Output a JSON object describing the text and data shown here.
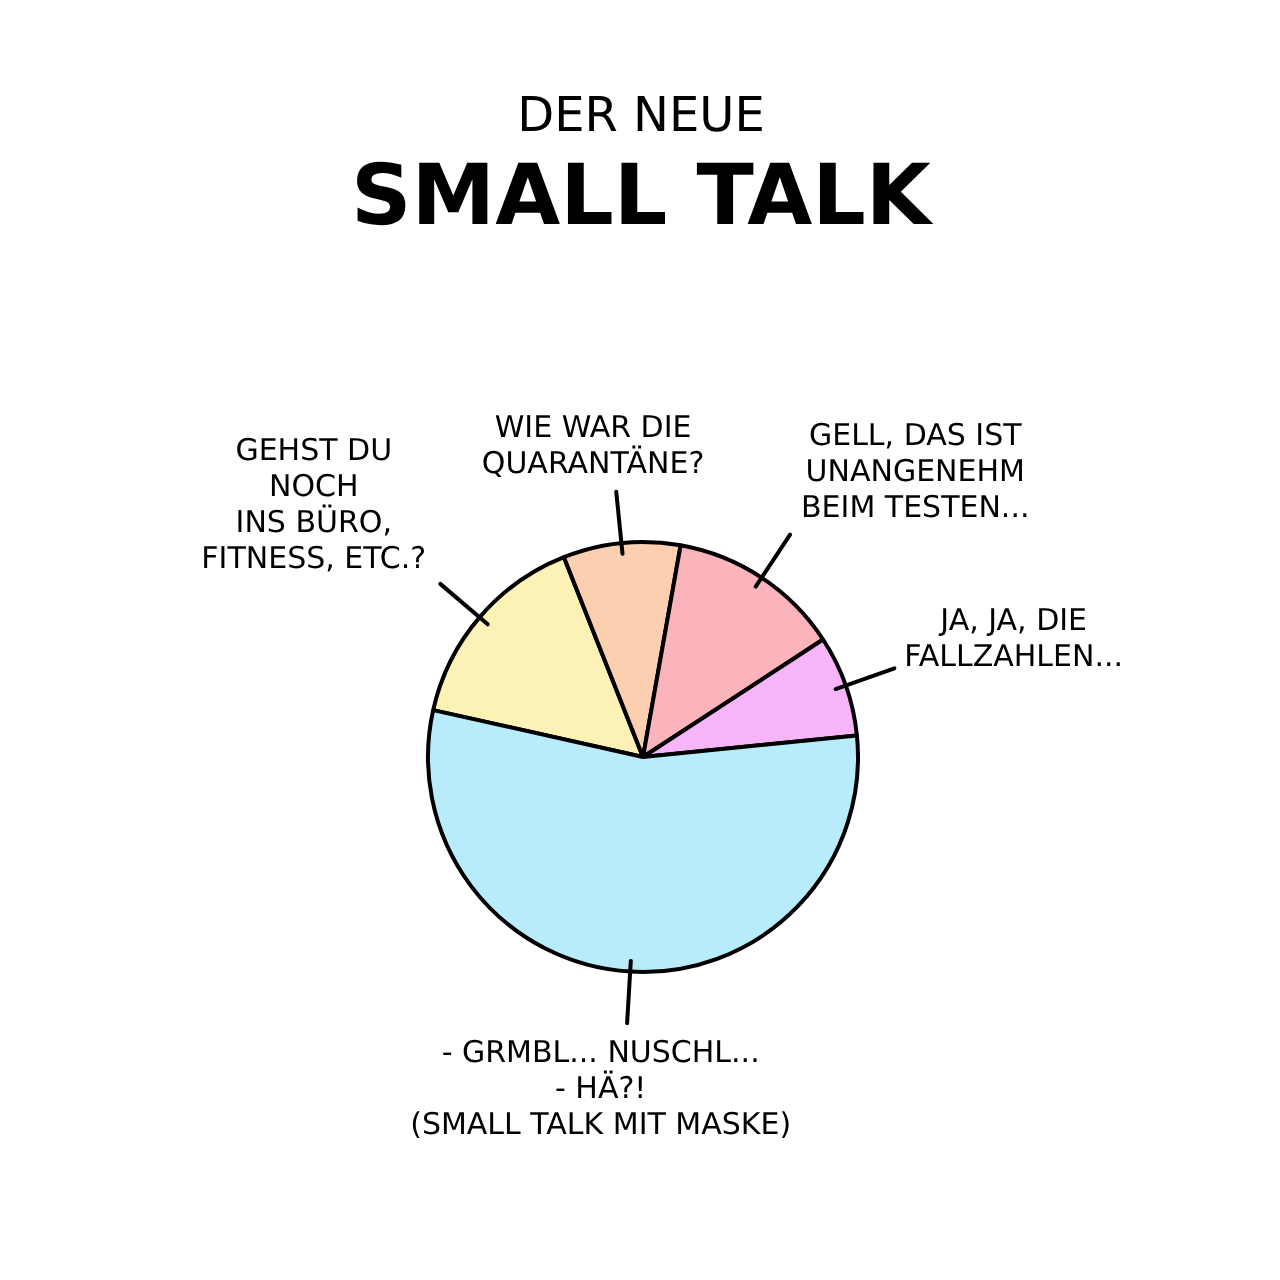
{
  "chart_data": {
    "type": "pie",
    "title": "DER NEUE\nSMALL TALK",
    "categories": [
      "GEHST DU\nNOCH\nINS BÜRO,\nFITNESS, ETC.?",
      "WIE WAR DIE\nQUARANTÄNE?",
      "GELL, DAS IST\nUNANGENEHM\nBEIM TESTEN...",
      "JA, JA, DIE\nFALLZAHLEN...",
      "- GRMBL... NUSCHL...\n- HÄ?!\n(SMALL TALK MIT MASKE)"
    ],
    "values": [
      15.5,
      8.8,
      13.0,
      7.6,
      55.1
    ],
    "colors": [
      "#fdf2b5",
      "#fccfb0",
      "#fbb4bb",
      "#f7b5f9",
      "#b8ecfb"
    ]
  }
}
